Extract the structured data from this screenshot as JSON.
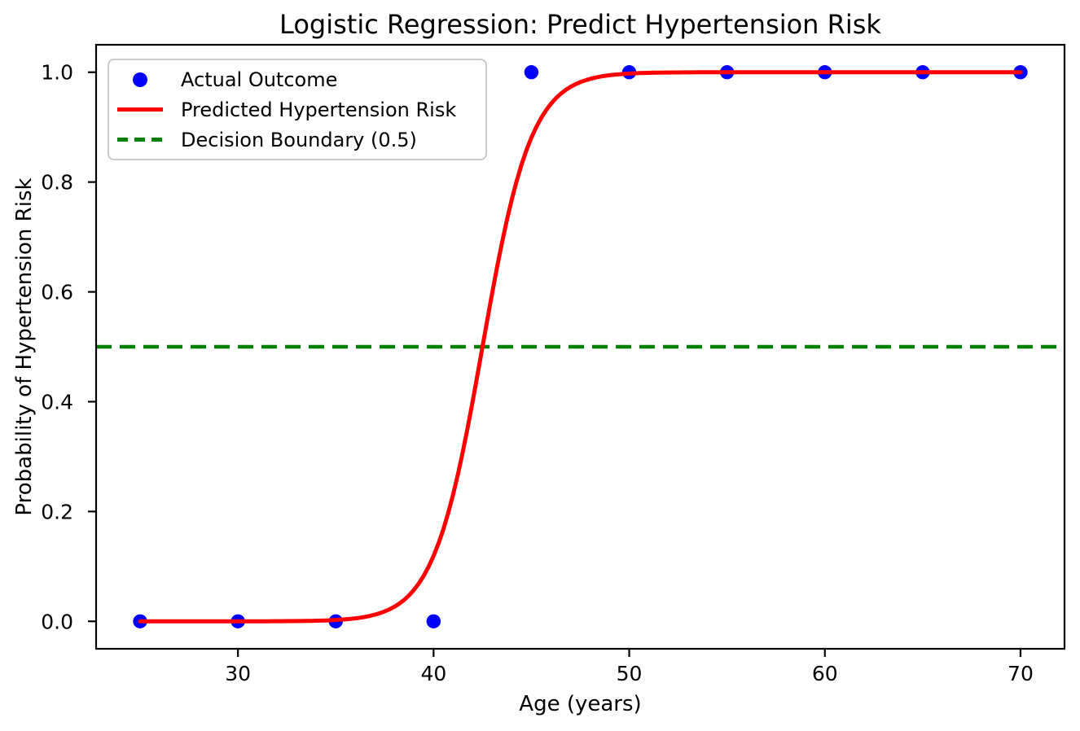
{
  "chart_data": {
    "type": "scatter",
    "title": "Logistic Regression: Predict Hypertension Risk",
    "xlabel": "Age (years)",
    "ylabel": "Probability of Hypertension Risk",
    "xlim": [
      22.75,
      72.25
    ],
    "ylim": [
      -0.05,
      1.05
    ],
    "xticks": [
      30,
      40,
      50,
      60,
      70
    ],
    "yticks": [
      0.0,
      0.2,
      0.4,
      0.6,
      0.8,
      1.0
    ],
    "grid": false,
    "legend_position": "upper left",
    "series": [
      {
        "type": "scatter",
        "label": "Actual Outcome",
        "color": "#0000ff",
        "marker": "circle",
        "x": [
          25,
          30,
          35,
          40,
          45,
          50,
          55,
          60,
          65,
          70
        ],
        "y": [
          0,
          0,
          0,
          0,
          1,
          1,
          1,
          1,
          1,
          1
        ]
      },
      {
        "type": "line",
        "label": "Predicted Hypertension Risk",
        "color": "#ff0000",
        "curve": "logistic",
        "params": {
          "x0": 42.5,
          "k": 0.8
        },
        "x_range": [
          25,
          70
        ],
        "linestyle": "solid"
      },
      {
        "type": "hline",
        "label": "Decision Boundary (0.5)",
        "color": "#008000",
        "y": 0.5,
        "linestyle": "dashed"
      }
    ],
    "axis_color": "#000000"
  }
}
